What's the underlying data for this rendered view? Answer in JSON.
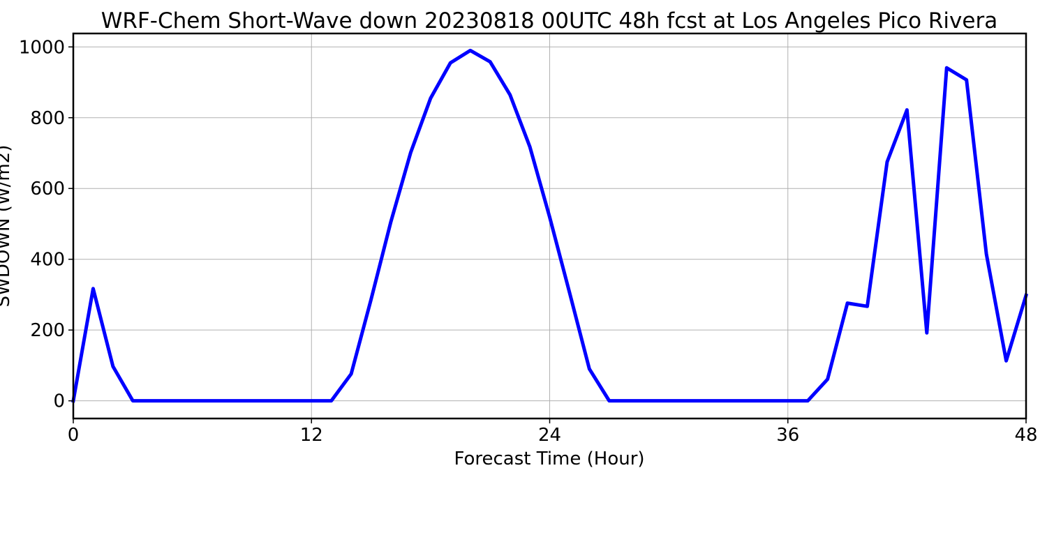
{
  "chart_data": {
    "type": "line",
    "title": "WRF-Chem Short-Wave down  20230818 00UTC 48h fcst at Los Angeles Pico Rivera",
    "xlabel": "Forecast Time (Hour)",
    "ylabel": "SWDOWN  (W/m2)",
    "xlim": [
      0,
      48
    ],
    "ylim": [
      -50,
      1038
    ],
    "xticks": [
      0,
      12,
      24,
      36,
      48
    ],
    "yticks": [
      0,
      200,
      400,
      600,
      800,
      1000
    ],
    "grid": true,
    "series": [
      {
        "color": "#0000ff",
        "x": [
          0,
          1,
          2,
          3,
          4,
          5,
          6,
          7,
          8,
          9,
          10,
          11,
          12,
          13,
          14,
          15,
          16,
          17,
          18,
          19,
          20,
          21,
          22,
          23,
          24,
          25,
          26,
          27,
          28,
          29,
          30,
          31,
          32,
          33,
          34,
          35,
          36,
          37,
          38,
          39,
          40,
          41,
          42,
          43,
          44,
          45,
          46,
          47,
          48
        ],
        "values": [
          0,
          317,
          97,
          0,
          0,
          0,
          0,
          0,
          0,
          0,
          0,
          0,
          0,
          0,
          76,
          286,
          506,
          702,
          855,
          955,
          990,
          958,
          865,
          718,
          519,
          306,
          90,
          0,
          0,
          0,
          0,
          0,
          0,
          0,
          0,
          0,
          0,
          0,
          61,
          276,
          267,
          675,
          822,
          192,
          941,
          907,
          415,
          113,
          298
        ]
      }
    ]
  }
}
